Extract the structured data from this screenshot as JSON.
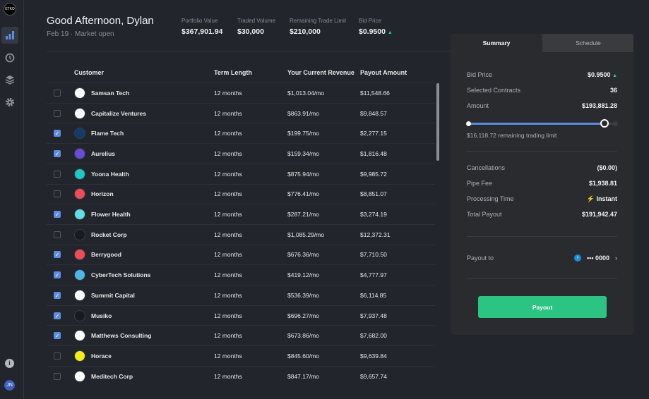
{
  "brand": {
    "logo_text": "ETKO"
  },
  "sidebar": {
    "items": [
      {
        "name": "dashboard",
        "icon": "bar-chart-icon",
        "active": true
      },
      {
        "name": "history",
        "icon": "history-icon"
      },
      {
        "name": "layers",
        "icon": "layers-icon"
      },
      {
        "name": "settings",
        "icon": "gear-icon"
      }
    ],
    "info_icon": "info-icon",
    "user_initials": "JN"
  },
  "header": {
    "greeting": "Good Afternoon, Dylan",
    "subtitle": "Feb 19 · Market open",
    "stats": [
      {
        "label": "Portfolio Value",
        "value": "$367,901.94"
      },
      {
        "label": "Traded Volume",
        "value": "$30,000"
      },
      {
        "label": "Remaining Trade Limit",
        "value": "$210,000"
      },
      {
        "label": "Bid Price",
        "value": "$0.9500",
        "trend": "up"
      }
    ]
  },
  "table": {
    "columns": [
      "Customer",
      "Term Length",
      "Your Current Revenue",
      "Payout Amount"
    ],
    "rows": [
      {
        "checked": false,
        "name": "Samsan Tech",
        "term": "12 months",
        "revenue": "$1,013.04/mo",
        "payout": "$11,548.66",
        "color": "#ffffff"
      },
      {
        "checked": false,
        "name": "Capitalize Ventures",
        "term": "12 months",
        "revenue": "$863.91/mo",
        "payout": "$9,848.57",
        "color": "#ffffff"
      },
      {
        "checked": true,
        "name": "Flame Tech",
        "term": "12 months",
        "revenue": "$199.75/mo",
        "payout": "$2,277.15",
        "color": "#133a6b"
      },
      {
        "checked": true,
        "name": "Aurelius",
        "term": "12 months",
        "revenue": "$159.34/mo",
        "payout": "$1,816.48",
        "color": "#6a4bd8"
      },
      {
        "checked": false,
        "name": "Yoona Health",
        "term": "12 months",
        "revenue": "$875.94/mo",
        "payout": "$9,985.72",
        "color": "#1ec9c0"
      },
      {
        "checked": false,
        "name": "Horizon",
        "term": "12 months",
        "revenue": "$776.41/mo",
        "payout": "$8,851.07",
        "color": "#ef4a5e"
      },
      {
        "checked": true,
        "name": "Flower Health",
        "term": "12 months",
        "revenue": "$287.21/mo",
        "payout": "$3,274.19",
        "color": "#5ee0e0"
      },
      {
        "checked": false,
        "name": "Rocket Corp",
        "term": "12 months",
        "revenue": "$1,085.29/mo",
        "payout": "$12,372.31",
        "color": "#1a1a1e"
      },
      {
        "checked": true,
        "name": "Berrygood",
        "term": "12 months",
        "revenue": "$676.36/mo",
        "payout": "$7,710.50",
        "color": "#ef4a5e"
      },
      {
        "checked": true,
        "name": "CyberTech Solutions",
        "term": "12 months",
        "revenue": "$419.12/mo",
        "payout": "$4,777.97",
        "color": "#4bb8e6"
      },
      {
        "checked": true,
        "name": "Summit Capital",
        "term": "12 months",
        "revenue": "$536.39/mo",
        "payout": "$6,114.85",
        "color": "#ffffff"
      },
      {
        "checked": true,
        "name": "Musiko",
        "term": "12 months",
        "revenue": "$696.27/mo",
        "payout": "$7,937.48",
        "color": "#1a1a1e"
      },
      {
        "checked": true,
        "name": "Matthews Consulting",
        "term": "12 months",
        "revenue": "$673.86/mo",
        "payout": "$7,682.00",
        "color": "#ffffff"
      },
      {
        "checked": false,
        "name": "Horace",
        "term": "12 months",
        "revenue": "$845.60/mo",
        "payout": "$9,639.84",
        "color": "#f2ee1a"
      },
      {
        "checked": false,
        "name": "Meditech Corp",
        "term": "12 months",
        "revenue": "$847.17/mo",
        "payout": "$9,657.74",
        "color": "#ffffff"
      }
    ]
  },
  "panel": {
    "tabs": [
      "Summary",
      "Schedule"
    ],
    "active_tab": "Summary",
    "bid_price_label": "Bid Price",
    "bid_price": "$0.9500",
    "contracts_label": "Selected Contracts",
    "contracts": "36",
    "amount_label": "Amount",
    "amount": "$193,881.28",
    "slider_percent": 95,
    "remaining": "$16,118.72 remaining trading limit",
    "cancellations_label": "Cancellations",
    "cancellations": "($0.00)",
    "fee_label": "Pipe Fee",
    "fee": "$1,938.81",
    "processing_label": "Processing Time",
    "processing": "Instant",
    "total_label": "Total Payout",
    "total": "$191,942.47",
    "payout_to_label": "Payout to",
    "account": "••• 0000",
    "payout_button": "Payout"
  },
  "colors": {
    "accent": "#5b8de0",
    "success": "#2bc483"
  }
}
